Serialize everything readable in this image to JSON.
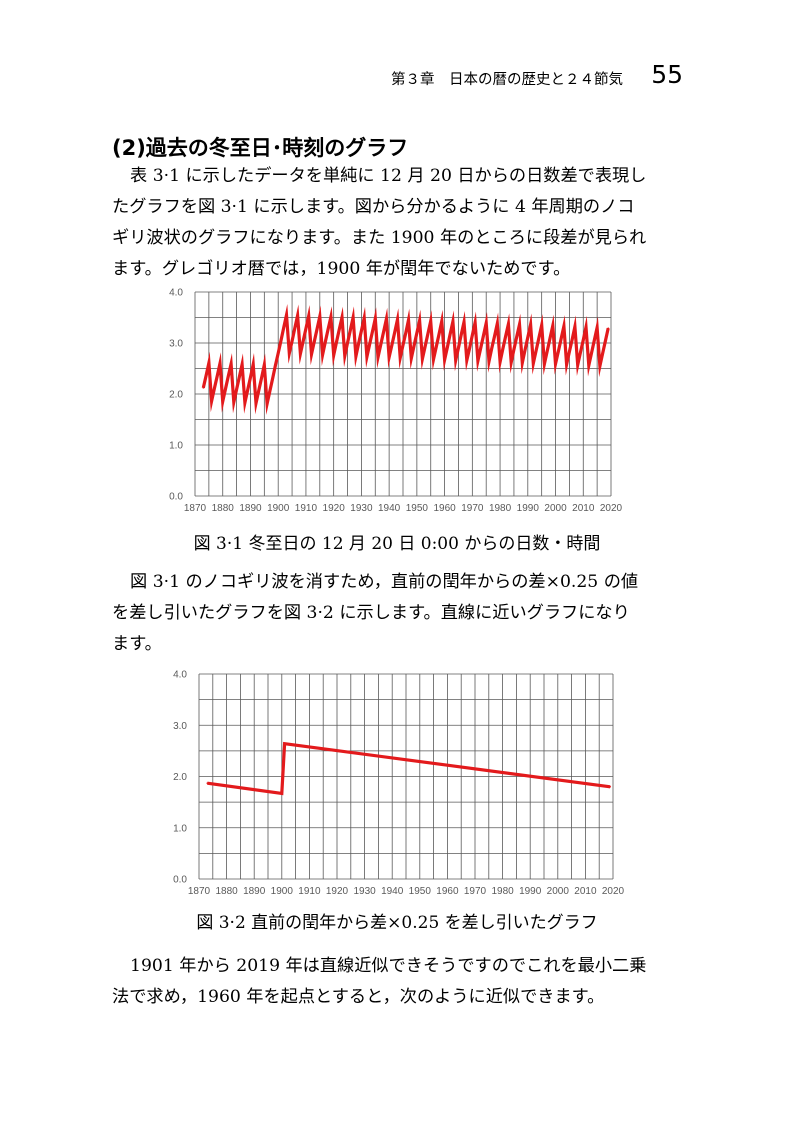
{
  "header": {
    "chapter": "第３章　日本の暦の歴史と２４節気",
    "page_number": "55"
  },
  "section_title": "(2)過去の冬至日･時刻のグラフ",
  "paragraph1": [
    "表 3·1 に示したデータを単純に 12 月 20 日からの日数差で表現し",
    "たグラフを図 3·1 に示します。図から分かるように 4 年周期のノコ",
    "ギリ波状のグラフになります。また 1900 年のところに段差が見られ",
    "ます。グレゴリオ暦では，1900 年が閏年でないためです。"
  ],
  "figure1_caption": "図 3·1  冬至日の 12 月 20 日 0:00 からの日数・時間",
  "paragraph2": [
    "図 3·1 のノコギリ波を消すため，直前の閏年からの差×0.25 の値",
    "を差し引いたグラフを図 3·2 に示します。直線に近いグラフになり",
    "ます。"
  ],
  "figure2_caption": "図 3·2  直前の閏年から差×0.25 を差し引いたグラフ",
  "paragraph3": [
    "1901 年から 2019 年は直線近似できそうですのでこれを最小二乗",
    "法で求め，1960 年を起点とすると，次のように近似できます。"
  ],
  "chart_data": [
    {
      "type": "line",
      "title": "",
      "xlabel": "",
      "ylabel": "",
      "xlim": [
        1870,
        2020
      ],
      "ylim": [
        0,
        4
      ],
      "x_ticks": [
        "1870",
        "1880",
        "1890",
        "1900",
        "1910",
        "1920",
        "1930",
        "1940",
        "1950",
        "1960",
        "1970",
        "1980",
        "1990",
        "2000",
        "2010",
        "2020"
      ],
      "y_ticks": [
        "0.0",
        "1.0",
        "2.0",
        "3.0",
        "4.0"
      ],
      "grid": true,
      "line_color": "#e31a1c",
      "x": [
        1873,
        1874,
        1875,
        1876,
        1877,
        1878,
        1879,
        1880,
        1881,
        1882,
        1883,
        1884,
        1885,
        1886,
        1887,
        1888,
        1889,
        1890,
        1891,
        1892,
        1893,
        1894,
        1895,
        1896,
        1897,
        1898,
        1899,
        1900,
        1901,
        1902,
        1903,
        1904,
        1905,
        1906,
        1907,
        1908,
        1909,
        1910,
        1911,
        1912,
        1913,
        1914,
        1915,
        1916,
        1917,
        1918,
        1919,
        1920,
        1921,
        1922,
        1923,
        1924,
        1925,
        1926,
        1927,
        1928,
        1929,
        1930,
        1931,
        1932,
        1933,
        1934,
        1935,
        1936,
        1937,
        1938,
        1939,
        1940,
        1941,
        1942,
        1943,
        1944,
        1945,
        1946,
        1947,
        1948,
        1949,
        1950,
        1951,
        1952,
        1953,
        1954,
        1955,
        1956,
        1957,
        1958,
        1959,
        1960,
        1961,
        1962,
        1963,
        1964,
        1965,
        1966,
        1967,
        1968,
        1969,
        1970,
        1971,
        1972,
        1973,
        1974,
        1975,
        1976,
        1977,
        1978,
        1979,
        1980,
        1981,
        1982,
        1983,
        1984,
        1985,
        1986,
        1987,
        1988,
        1989,
        1990,
        1991,
        1992,
        1993,
        1994,
        1995,
        1996,
        1997,
        1998,
        1999,
        2000,
        2001,
        2002,
        2003,
        2004,
        2005,
        2006,
        2007,
        2008,
        2009,
        2010,
        2011,
        2012,
        2013,
        2014,
        2015,
        2016,
        2017,
        2018,
        2019
      ],
      "values": [
        2.12,
        2.36,
        2.61,
        1.86,
        2.11,
        2.35,
        2.6,
        1.85,
        2.1,
        2.35,
        2.59,
        1.84,
        2.09,
        2.34,
        2.58,
        1.83,
        2.08,
        2.33,
        2.58,
        1.82,
        2.07,
        2.32,
        2.57,
        1.81,
        2.06,
        2.31,
        2.56,
        2.8,
        3.05,
        3.3,
        3.55,
        2.8,
        3.04,
        3.29,
        3.54,
        2.79,
        3.04,
        3.28,
        3.53,
        2.78,
        3.03,
        3.27,
        3.52,
        2.77,
        3.02,
        3.27,
        3.51,
        2.76,
        3.01,
        3.26,
        3.5,
        2.75,
        3.0,
        3.25,
        3.5,
        2.74,
        2.99,
        3.24,
        3.49,
        2.73,
        2.98,
        3.23,
        3.48,
        2.72,
        2.97,
        3.22,
        3.47,
        2.72,
        2.96,
        3.21,
        3.46,
        2.71,
        2.96,
        3.2,
        3.45,
        2.7,
        2.95,
        3.2,
        3.44,
        2.69,
        2.94,
        3.19,
        3.43,
        2.68,
        2.93,
        3.18,
        3.43,
        2.67,
        2.92,
        3.17,
        3.42,
        2.66,
        2.91,
        3.16,
        3.41,
        2.66,
        2.9,
        3.15,
        3.4,
        2.65,
        2.9,
        3.14,
        3.39,
        2.64,
        2.89,
        3.13,
        3.38,
        2.63,
        2.88,
        3.13,
        3.37,
        2.62,
        2.87,
        3.12,
        3.36,
        2.61,
        2.86,
        3.11,
        3.36,
        2.6,
        2.85,
        3.1,
        3.35,
        2.59,
        2.84,
        3.09,
        3.34,
        2.59,
        2.83,
        3.08,
        3.33,
        2.58,
        2.83,
        3.07,
        3.32,
        2.57,
        2.82,
        3.06,
        3.31,
        2.56,
        2.81,
        3.06,
        3.3,
        2.55,
        2.8,
        3.05,
        3.29
      ]
    },
    {
      "type": "line",
      "title": "",
      "xlabel": "",
      "ylabel": "",
      "xlim": [
        1870,
        2020
      ],
      "ylim": [
        0,
        4
      ],
      "x_ticks": [
        "1870",
        "1880",
        "1890",
        "1900",
        "1910",
        "1920",
        "1930",
        "1940",
        "1950",
        "1960",
        "1970",
        "1980",
        "1990",
        "2000",
        "2010",
        "2020"
      ],
      "y_ticks": [
        "0.0",
        "1.0",
        "2.0",
        "3.0",
        "4.0"
      ],
      "grid": true,
      "line_color": "#e31a1c",
      "x": [
        1873,
        1900,
        1901,
        1960,
        2019
      ],
      "values": [
        1.87,
        1.67,
        2.64,
        2.22,
        1.8
      ]
    }
  ]
}
